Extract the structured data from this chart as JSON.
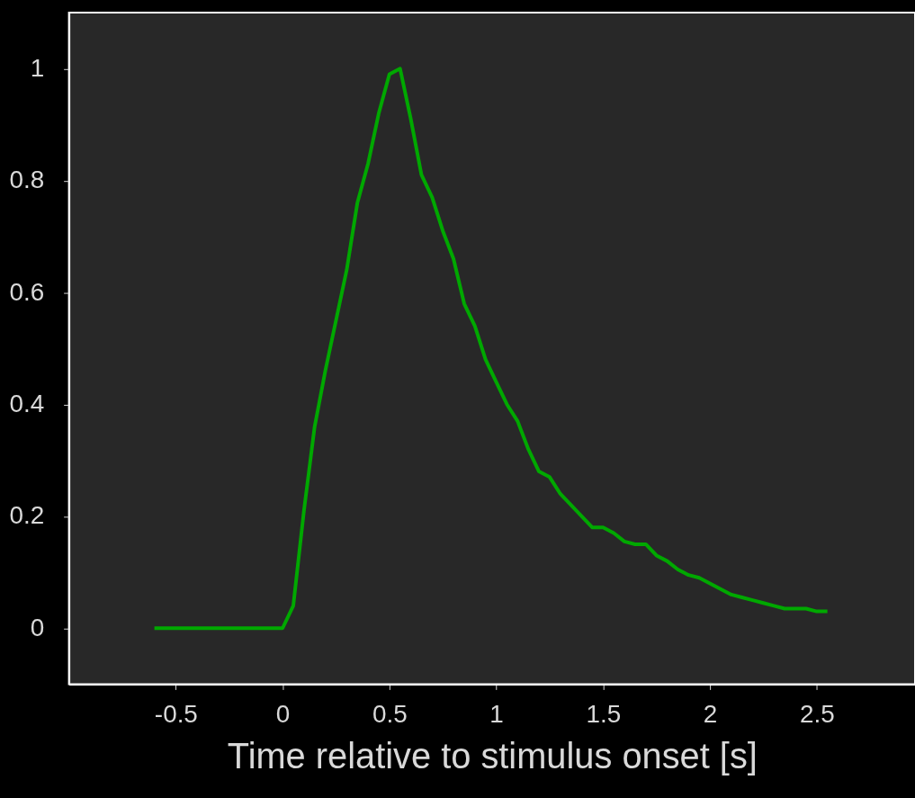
{
  "chart_data": {
    "type": "line",
    "xlabel": "Time relative to stimulus onset [s]",
    "xlim": [
      -1,
      2.96
    ],
    "ylim": [
      -0.1,
      1.1
    ],
    "xticks": [
      -0.5,
      0,
      0.5,
      1,
      1.5,
      2,
      2.5
    ],
    "yticks": [
      0,
      0.2,
      0.4,
      0.6,
      0.8,
      1
    ],
    "grid": false,
    "marker": "none",
    "line_style": "solid",
    "x": [
      -0.6,
      0,
      0.05,
      0.1,
      0.15,
      0.2,
      0.25,
      0.3,
      0.35,
      0.4,
      0.45,
      0.5,
      0.55,
      0.6,
      0.65,
      0.7,
      0.75,
      0.8,
      0.85,
      0.9,
      0.95,
      1.0,
      1.05,
      1.1,
      1.15,
      1.2,
      1.25,
      1.3,
      1.35,
      1.4,
      1.45,
      1.5,
      1.55,
      1.6,
      1.65,
      1.7,
      1.75,
      1.8,
      1.85,
      1.9,
      1.95,
      2.0,
      2.05,
      2.1,
      2.15,
      2.2,
      2.25,
      2.3,
      2.35,
      2.4,
      2.45,
      2.5,
      2.55
    ],
    "series": [
      {
        "color": "#00a800",
        "values": [
          0,
          0,
          0.04,
          0.21,
          0.36,
          0.46,
          0.55,
          0.64,
          0.76,
          0.83,
          0.92,
          0.99,
          1.0,
          0.91,
          0.81,
          0.77,
          0.71,
          0.66,
          0.58,
          0.54,
          0.48,
          0.44,
          0.4,
          0.37,
          0.32,
          0.28,
          0.27,
          0.24,
          0.22,
          0.2,
          0.18,
          0.18,
          0.17,
          0.155,
          0.15,
          0.15,
          0.13,
          0.12,
          0.105,
          0.095,
          0.09,
          0.08,
          0.07,
          0.06,
          0.055,
          0.05,
          0.045,
          0.04,
          0.035,
          0.035,
          0.035,
          0.03,
          0.03
        ]
      }
    ]
  }
}
